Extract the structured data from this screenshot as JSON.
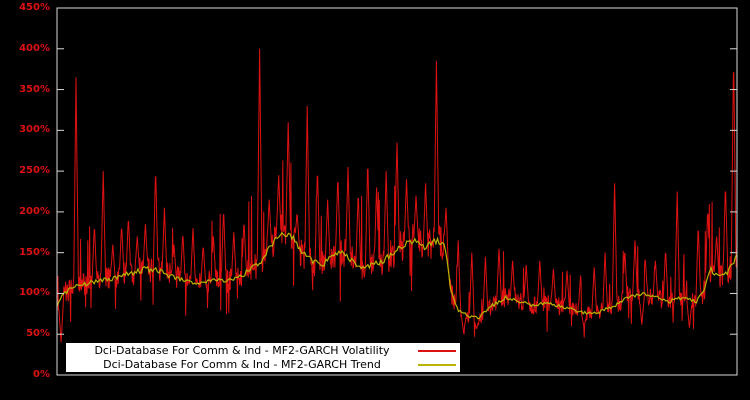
{
  "chart_data": {
    "type": "line",
    "title": "",
    "xlabel": "",
    "ylabel": "",
    "background": "#000000",
    "border_color": "#d9d9d9",
    "tick_label_color": "#dd1111",
    "grid": false,
    "ylim": [
      0,
      450
    ],
    "ytick_values": [
      0,
      50,
      100,
      150,
      200,
      250,
      300,
      350,
      400,
      450
    ],
    "yticks": [
      "0%",
      "50%",
      "100%",
      "150%",
      "200%",
      "250%",
      "300%",
      "350%",
      "400%",
      "450%"
    ],
    "legend": {
      "position": "bottom-inside",
      "background": "#ffffff"
    },
    "series": [
      {
        "name": "Dci-Database For Comm & Ind - MF2-GARCH Volatility",
        "color": "#dd1111",
        "style": "noisy"
      },
      {
        "name": "Dci-Database For Comm & Ind - MF2-GARCH Trend",
        "color": "#b8b400",
        "style": "smooth"
      }
    ],
    "trend_points": [
      [
        0.0,
        85
      ],
      [
        0.01,
        100
      ],
      [
        0.03,
        110
      ],
      [
        0.06,
        115
      ],
      [
        0.09,
        120
      ],
      [
        0.11,
        125
      ],
      [
        0.13,
        130
      ],
      [
        0.15,
        128
      ],
      [
        0.17,
        120
      ],
      [
        0.19,
        115
      ],
      [
        0.21,
        112
      ],
      [
        0.23,
        118
      ],
      [
        0.25,
        115
      ],
      [
        0.27,
        120
      ],
      [
        0.285,
        130
      ],
      [
        0.3,
        140
      ],
      [
        0.315,
        160
      ],
      [
        0.33,
        175
      ],
      [
        0.345,
        170
      ],
      [
        0.36,
        150
      ],
      [
        0.375,
        140
      ],
      [
        0.39,
        135
      ],
      [
        0.405,
        145
      ],
      [
        0.42,
        150
      ],
      [
        0.435,
        140
      ],
      [
        0.45,
        130
      ],
      [
        0.465,
        135
      ],
      [
        0.48,
        140
      ],
      [
        0.495,
        150
      ],
      [
        0.51,
        160
      ],
      [
        0.525,
        165
      ],
      [
        0.54,
        155
      ],
      [
        0.555,
        165
      ],
      [
        0.57,
        160
      ],
      [
        0.58,
        100
      ],
      [
        0.59,
        80
      ],
      [
        0.605,
        72
      ],
      [
        0.62,
        70
      ],
      [
        0.64,
        85
      ],
      [
        0.66,
        95
      ],
      [
        0.68,
        90
      ],
      [
        0.7,
        85
      ],
      [
        0.72,
        88
      ],
      [
        0.74,
        85
      ],
      [
        0.76,
        80
      ],
      [
        0.78,
        75
      ],
      [
        0.8,
        78
      ],
      [
        0.82,
        85
      ],
      [
        0.84,
        95
      ],
      [
        0.86,
        100
      ],
      [
        0.88,
        95
      ],
      [
        0.9,
        90
      ],
      [
        0.92,
        95
      ],
      [
        0.94,
        90
      ],
      [
        0.95,
        100
      ],
      [
        0.96,
        130
      ],
      [
        0.975,
        120
      ],
      [
        0.985,
        125
      ],
      [
        1.0,
        145
      ]
    ],
    "spikes": [
      [
        0.028,
        365
      ],
      [
        0.055,
        185
      ],
      [
        0.068,
        250
      ],
      [
        0.082,
        160
      ],
      [
        0.095,
        185
      ],
      [
        0.105,
        195
      ],
      [
        0.118,
        170
      ],
      [
        0.13,
        185
      ],
      [
        0.145,
        255
      ],
      [
        0.158,
        205
      ],
      [
        0.172,
        160
      ],
      [
        0.185,
        175
      ],
      [
        0.2,
        180
      ],
      [
        0.215,
        160
      ],
      [
        0.23,
        170
      ],
      [
        0.245,
        205
      ],
      [
        0.26,
        175
      ],
      [
        0.275,
        190
      ],
      [
        0.298,
        400
      ],
      [
        0.312,
        215
      ],
      [
        0.326,
        245
      ],
      [
        0.34,
        310
      ],
      [
        0.353,
        200
      ],
      [
        0.368,
        330
      ],
      [
        0.383,
        255
      ],
      [
        0.398,
        215
      ],
      [
        0.413,
        245
      ],
      [
        0.428,
        255
      ],
      [
        0.443,
        225
      ],
      [
        0.457,
        265
      ],
      [
        0.47,
        230
      ],
      [
        0.484,
        250
      ],
      [
        0.5,
        285
      ],
      [
        0.514,
        240
      ],
      [
        0.528,
        220
      ],
      [
        0.542,
        235
      ],
      [
        0.558,
        385
      ],
      [
        0.572,
        205
      ],
      [
        0.59,
        165
      ],
      [
        0.61,
        150
      ],
      [
        0.63,
        145
      ],
      [
        0.65,
        155
      ],
      [
        0.67,
        140
      ],
      [
        0.69,
        135
      ],
      [
        0.71,
        140
      ],
      [
        0.73,
        130
      ],
      [
        0.75,
        128
      ],
      [
        0.77,
        122
      ],
      [
        0.79,
        132
      ],
      [
        0.806,
        150
      ],
      [
        0.82,
        235
      ],
      [
        0.835,
        155
      ],
      [
        0.85,
        165
      ],
      [
        0.865,
        145
      ],
      [
        0.88,
        140
      ],
      [
        0.895,
        155
      ],
      [
        0.912,
        225
      ],
      [
        0.928,
        145
      ],
      [
        0.943,
        185
      ],
      [
        0.957,
        205
      ],
      [
        0.97,
        170
      ],
      [
        0.983,
        235
      ],
      [
        0.995,
        395
      ]
    ],
    "dips": [
      [
        0.006,
        40
      ],
      [
        0.598,
        52
      ],
      [
        0.617,
        56
      ],
      [
        0.775,
        58
      ],
      [
        0.86,
        62
      ],
      [
        0.93,
        58
      ]
    ],
    "noise": {
      "amplitude": 0.13,
      "points": 1500
    }
  }
}
